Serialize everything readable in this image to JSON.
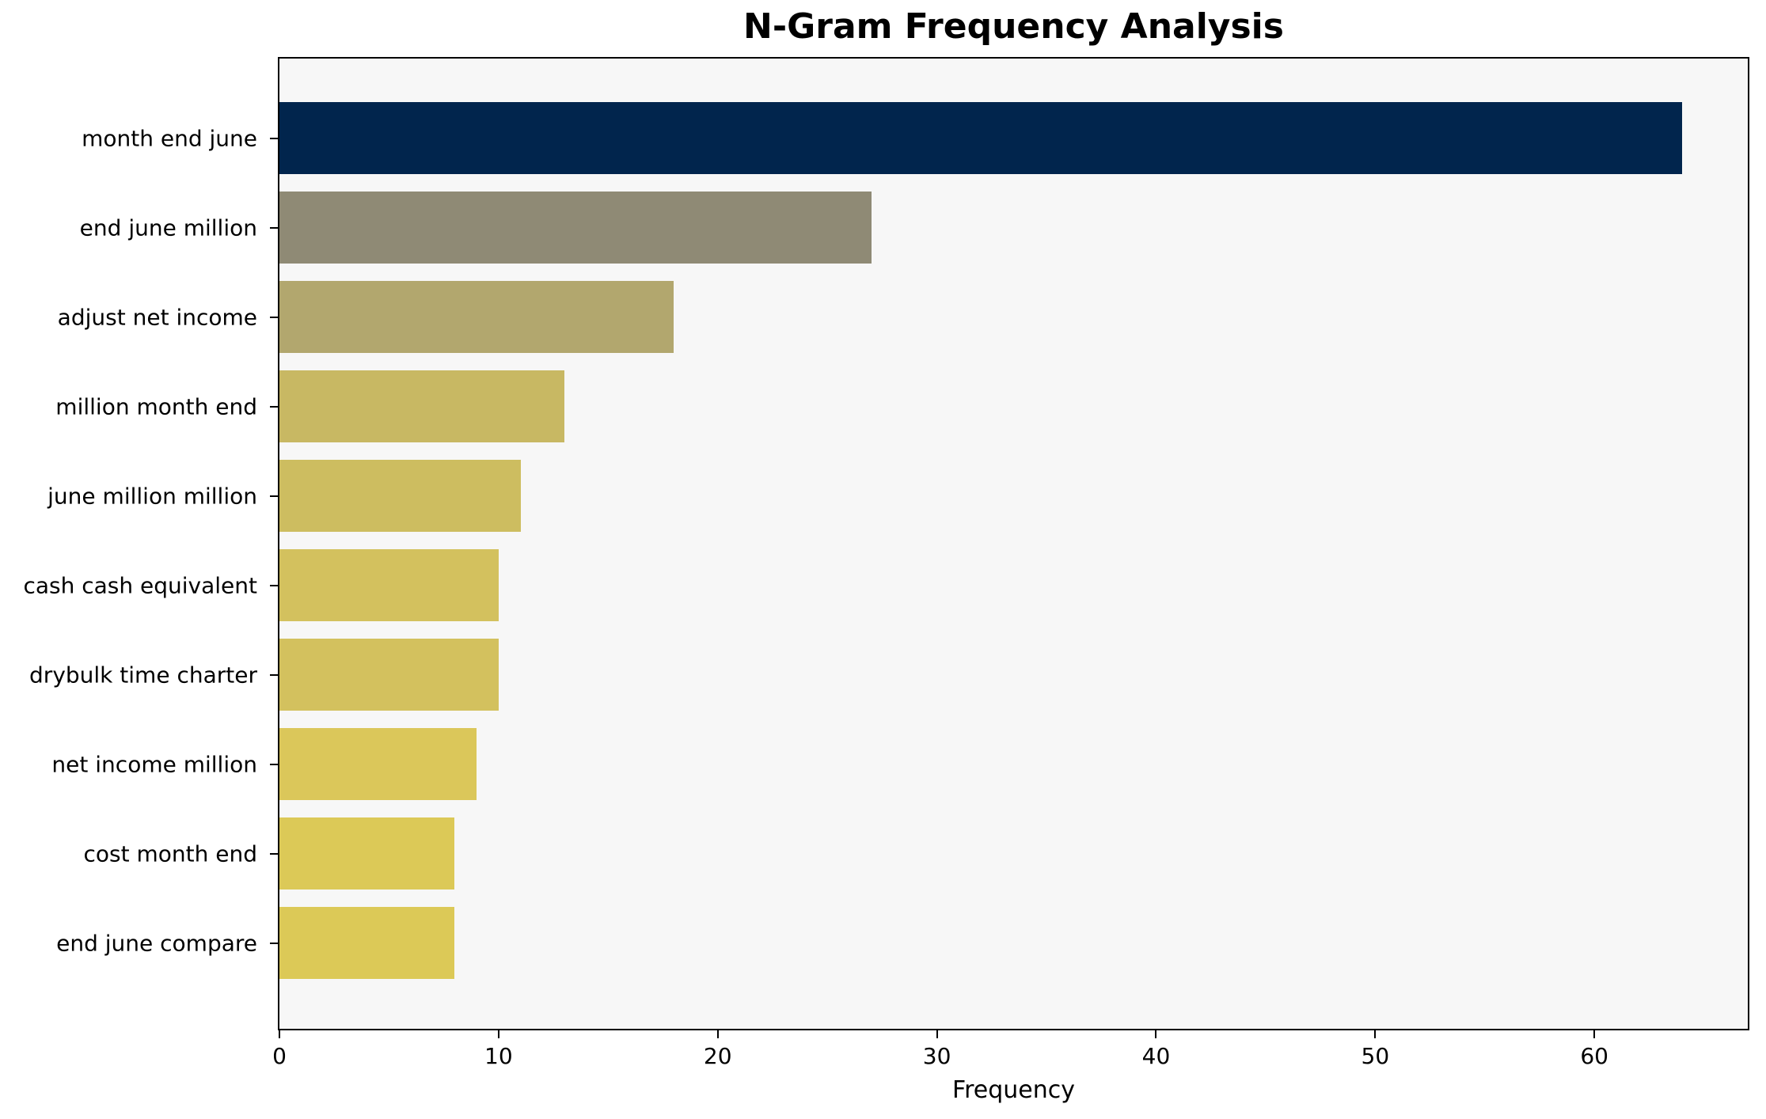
{
  "chart_data": {
    "type": "bar",
    "orientation": "horizontal",
    "title": "N-Gram Frequency Analysis",
    "xlabel": "Frequency",
    "ylabel": "",
    "categories": [
      "month end june",
      "end june million",
      "adjust net income",
      "million month end",
      "june million million",
      "cash cash equivalent",
      "drybulk time charter",
      "net income million",
      "cost month end",
      "end june compare"
    ],
    "values": [
      64,
      27,
      18,
      13,
      11,
      10,
      10,
      9,
      8,
      8
    ],
    "bar_colors": [
      "#01254d",
      "#8f8a75",
      "#b2a76e",
      "#c8b863",
      "#cdbd60",
      "#d3c15e",
      "#d3c15e",
      "#dbc75a",
      "#dcc957",
      "#dcc957"
    ],
    "xticks": [
      0,
      10,
      20,
      30,
      40,
      50,
      60
    ],
    "xlim": [
      0,
      67
    ],
    "grid": false,
    "legend": null,
    "plot_background": "#f7f7f7",
    "figure_background": "#ffffff",
    "spine_color": "#000000"
  }
}
